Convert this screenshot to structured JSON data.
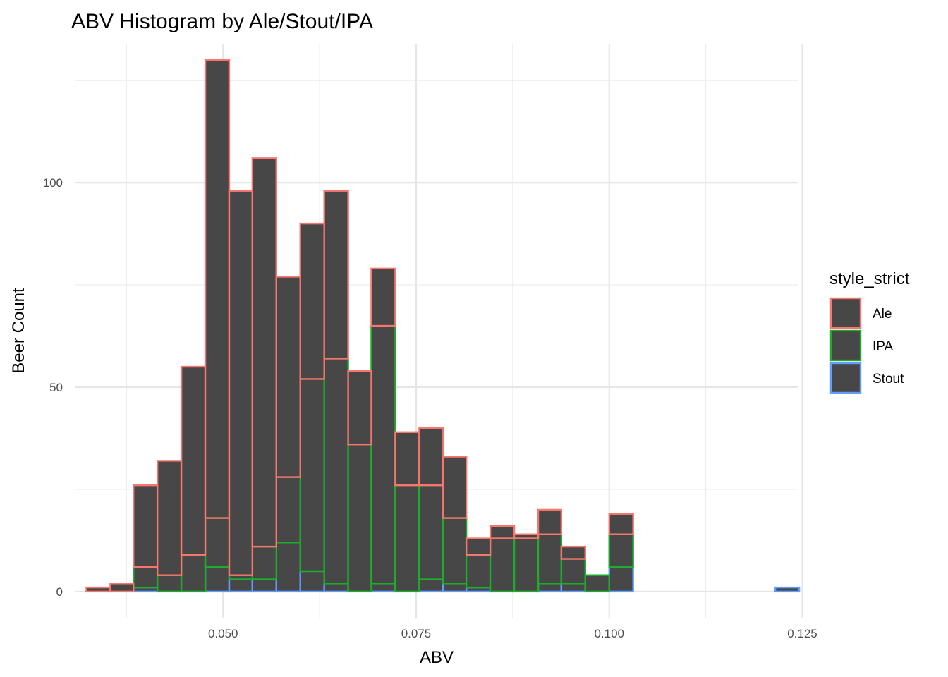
{
  "chart_data": {
    "type": "bar",
    "title": "ABV Histogram by Ale/Stout/IPA",
    "xlabel": "ABV",
    "ylabel": "Beer Count",
    "xlim": [
      0.0308,
      0.1245
    ],
    "ylim": [
      -6.4,
      134
    ],
    "x_ticks": [
      0.05,
      0.075,
      0.1,
      0.125
    ],
    "x_tick_labels": [
      "0.050",
      "0.075",
      "0.100",
      "0.125"
    ],
    "y_ticks": [
      0,
      50,
      100
    ],
    "y_tick_labels": [
      "0",
      "50",
      "100"
    ],
    "grid": true,
    "bars_stacked": true,
    "bar_fill": "#474747",
    "legend": {
      "title": "style_strict",
      "position": "right",
      "entries": [
        {
          "label": "Ale",
          "color": "#F8766D"
        },
        {
          "label": "IPA",
          "color": "#1DAD2B"
        },
        {
          "label": "Stout",
          "color": "#619CFF"
        }
      ]
    },
    "bins": [
      {
        "x0": 0.0323,
        "x1": 0.0354
      },
      {
        "x0": 0.0354,
        "x1": 0.0384
      },
      {
        "x0": 0.0384,
        "x1": 0.0415
      },
      {
        "x0": 0.0415,
        "x1": 0.0446
      },
      {
        "x0": 0.0446,
        "x1": 0.0477
      },
      {
        "x0": 0.0477,
        "x1": 0.0508
      },
      {
        "x0": 0.0508,
        "x1": 0.0538
      },
      {
        "x0": 0.0538,
        "x1": 0.0569
      },
      {
        "x0": 0.0569,
        "x1": 0.06
      },
      {
        "x0": 0.06,
        "x1": 0.0631
      },
      {
        "x0": 0.0631,
        "x1": 0.0662
      },
      {
        "x0": 0.0662,
        "x1": 0.0692
      },
      {
        "x0": 0.0692,
        "x1": 0.0723
      },
      {
        "x0": 0.0723,
        "x1": 0.0754
      },
      {
        "x0": 0.0754,
        "x1": 0.0785
      },
      {
        "x0": 0.0785,
        "x1": 0.0815
      },
      {
        "x0": 0.0815,
        "x1": 0.0846
      },
      {
        "x0": 0.0846,
        "x1": 0.0877
      },
      {
        "x0": 0.0877,
        "x1": 0.0908
      },
      {
        "x0": 0.0908,
        "x1": 0.0938
      },
      {
        "x0": 0.0938,
        "x1": 0.0969
      },
      {
        "x0": 0.0969,
        "x1": 0.1
      },
      {
        "x0": 0.1,
        "x1": 0.1031
      },
      {
        "x0": 0.1031,
        "x1": 0.1062
      },
      {
        "x0": 0.1062,
        "x1": 0.1092
      },
      {
        "x0": 0.1092,
        "x1": 0.1123
      },
      {
        "x0": 0.1123,
        "x1": 0.1154
      },
      {
        "x0": 0.1154,
        "x1": 0.1185
      },
      {
        "x0": 0.1185,
        "x1": 0.1215
      },
      {
        "x0": 0.1215,
        "x1": 0.1246
      }
    ],
    "series": [
      {
        "name": "Stout",
        "values": [
          0,
          0,
          1,
          0,
          0,
          6,
          3,
          3,
          12,
          5,
          2,
          0,
          2,
          0,
          3,
          2,
          1,
          0,
          0,
          2,
          2,
          0,
          6,
          0,
          0,
          0,
          0,
          0,
          0,
          1
        ]
      },
      {
        "name": "IPA",
        "values": [
          0,
          0,
          5,
          4,
          9,
          12,
          1,
          8,
          16,
          47,
          55,
          36,
          63,
          26,
          23,
          16,
          8,
          13,
          13,
          12,
          6,
          4,
          8,
          0,
          0,
          0,
          0,
          0,
          0,
          0
        ]
      },
      {
        "name": "Ale",
        "values": [
          1,
          2,
          20,
          28,
          46,
          112,
          94,
          95,
          49,
          38,
          41,
          18,
          14,
          13,
          14,
          15,
          4,
          3,
          1,
          6,
          3,
          0,
          5,
          0,
          0,
          0,
          0,
          0,
          0,
          0
        ]
      }
    ]
  }
}
